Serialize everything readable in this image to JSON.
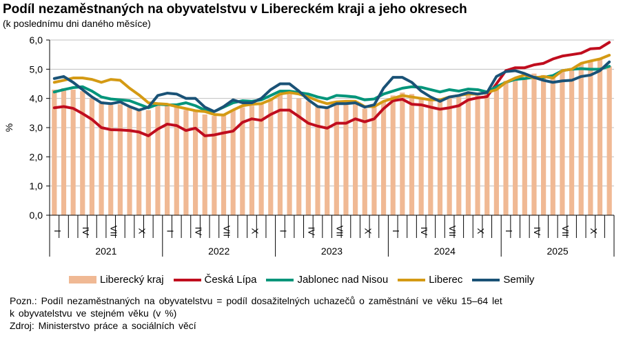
{
  "title": "Podíl nezaměstnaných na obyvatelstvu v Libereckém kraji a jeho okresech",
  "subtitle": "(k poslednímu dni daného měsíce)",
  "notes": [
    "Pozn.: Podíl nezaměstnaných na obyvatelstvu  = podíl dosažitelných uchazečů o zaměstnání  ve věku 15–64 let",
    "k obyvatelstvu  ve stejném věku (v %)",
    "Zdroj: Ministerstvo  práce a sociálních věcí"
  ],
  "chart_data": {
    "type": "bar+line",
    "title": "Podíl nezaměstnaných na obyvatelstvu v Libereckém kraji a jeho okresech",
    "ylabel": "%",
    "ylim": [
      0,
      6
    ],
    "yticks": [
      "0,0",
      "1,0",
      "2,0",
      "3,0",
      "4,0",
      "5,0",
      "6,0"
    ],
    "grid": true,
    "legend_position": "bottom",
    "years": [
      "2021",
      "2022",
      "2023",
      "2024",
      "2025"
    ],
    "month_labels": [
      "I",
      "IV",
      "VII",
      "X"
    ],
    "bar_series": {
      "name": "Liberecký kraj",
      "color": "#F0B994",
      "values": [
        4.3,
        4.35,
        4.3,
        4.25,
        4.0,
        3.9,
        3.85,
        3.8,
        3.7,
        3.65,
        3.6,
        3.75,
        3.75,
        3.7,
        3.6,
        3.55,
        3.45,
        3.4,
        3.45,
        3.6,
        3.7,
        3.75,
        3.8,
        3.95,
        4.15,
        4.15,
        4.0,
        3.9,
        3.75,
        3.7,
        3.8,
        3.8,
        3.8,
        3.65,
        3.7,
        3.9,
        4.1,
        4.2,
        4.15,
        4.0,
        3.95,
        3.9,
        4.0,
        4.05,
        4.1,
        4.1,
        4.15,
        4.3,
        4.6,
        4.7,
        4.7,
        4.85,
        4.8,
        4.8,
        4.95,
        5.0,
        5.2,
        5.25,
        5.35,
        5.1
      ]
    },
    "series": [
      {
        "name": "Česká Lípa",
        "color": "#C00D1E",
        "values": [
          3.68,
          3.72,
          3.66,
          3.48,
          3.28,
          3.0,
          2.93,
          2.92,
          2.9,
          2.85,
          2.72,
          2.95,
          3.12,
          3.07,
          2.9,
          2.98,
          2.72,
          2.75,
          2.82,
          2.88,
          3.18,
          3.3,
          3.25,
          3.45,
          3.6,
          3.6,
          3.38,
          3.15,
          3.05,
          2.98,
          3.15,
          3.15,
          3.3,
          3.2,
          3.3,
          3.65,
          3.92,
          3.97,
          3.8,
          3.78,
          3.7,
          3.63,
          3.68,
          3.75,
          3.95,
          4.02,
          4.06,
          4.5,
          4.95,
          5.05,
          5.05,
          5.15,
          5.2,
          5.35,
          5.45,
          5.5,
          5.55,
          5.7,
          5.72,
          5.92
        ]
      },
      {
        "name": "Jablonec nad Nisou",
        "color": "#00957A",
        "values": [
          4.22,
          4.3,
          4.37,
          4.4,
          4.25,
          4.05,
          3.98,
          3.95,
          3.92,
          3.8,
          3.68,
          3.8,
          3.78,
          3.78,
          3.85,
          3.75,
          3.6,
          3.55,
          3.7,
          3.85,
          3.92,
          3.9,
          3.95,
          4.1,
          4.25,
          4.25,
          4.2,
          4.15,
          4.05,
          3.98,
          4.1,
          4.08,
          4.05,
          3.95,
          3.98,
          4.15,
          4.25,
          4.35,
          4.4,
          4.38,
          4.3,
          4.22,
          4.3,
          4.25,
          4.32,
          4.3,
          4.22,
          4.4,
          4.55,
          4.65,
          4.68,
          4.72,
          4.72,
          4.78,
          4.95,
          5.0,
          5.02,
          5.0,
          5.0,
          5.1
        ]
      },
      {
        "name": "Liberec",
        "color": "#D49A14",
        "values": [
          4.55,
          4.62,
          4.7,
          4.7,
          4.65,
          4.55,
          4.65,
          4.62,
          4.35,
          4.12,
          3.85,
          3.82,
          3.8,
          3.72,
          3.65,
          3.58,
          3.55,
          3.45,
          3.43,
          3.6,
          3.75,
          3.8,
          3.82,
          3.95,
          4.15,
          4.2,
          4.15,
          4.05,
          3.92,
          3.82,
          3.88,
          3.9,
          3.9,
          3.72,
          3.72,
          3.9,
          4.0,
          4.1,
          4.05,
          4.0,
          3.95,
          3.95,
          4.05,
          4.1,
          4.15,
          4.15,
          4.2,
          4.3,
          4.55,
          4.7,
          4.8,
          4.7,
          4.75,
          4.7,
          4.95,
          5.0,
          5.2,
          5.28,
          5.35,
          5.48
        ]
      },
      {
        "name": "Semily",
        "color": "#1A5276",
        "values": [
          4.68,
          4.75,
          4.55,
          4.3,
          4.05,
          3.85,
          3.82,
          3.88,
          3.72,
          3.6,
          3.7,
          4.1,
          4.18,
          4.15,
          4.0,
          4.0,
          3.7,
          3.55,
          3.72,
          3.95,
          3.85,
          3.85,
          4.0,
          4.3,
          4.5,
          4.5,
          4.25,
          3.95,
          3.72,
          3.68,
          3.82,
          3.82,
          3.85,
          3.7,
          3.78,
          4.35,
          4.72,
          4.72,
          4.55,
          4.25,
          4.05,
          3.9,
          4.05,
          4.1,
          4.2,
          4.15,
          4.2,
          4.75,
          4.92,
          4.95,
          4.85,
          4.72,
          4.62,
          4.55,
          4.6,
          4.62,
          4.75,
          4.8,
          4.95,
          5.25
        ]
      }
    ]
  }
}
